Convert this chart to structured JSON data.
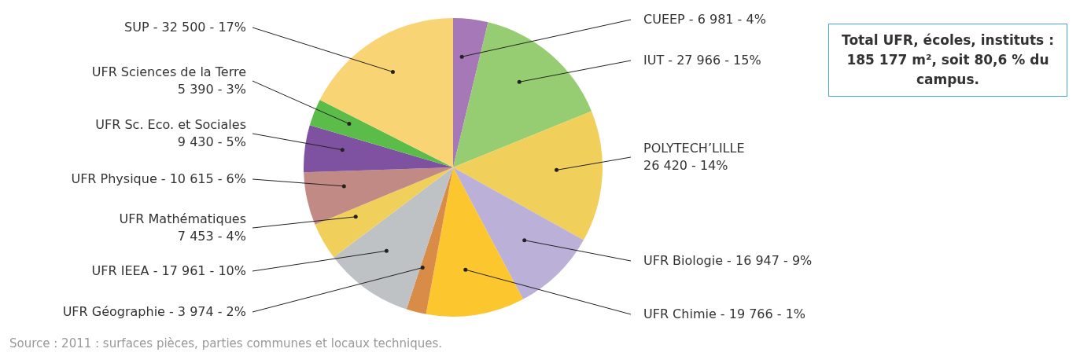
{
  "chart_data": {
    "type": "pie",
    "categories": [
      "CUEEP",
      "IUT",
      "POLYTECH’LILLE",
      "UFR Biologie",
      "UFR Chimie",
      "UFR Géographie",
      "UFR IEEA",
      "UFR Mathématiques",
      "UFR Physique",
      "UFR Sc. Eco. et Sociales",
      "UFR Sciences de la Terre",
      "SUP"
    ],
    "values": [
      6981,
      27966,
      26420,
      16947,
      19766,
      3974,
      17961,
      7453,
      10615,
      9430,
      5390,
      32500
    ],
    "value_labels": [
      "6 981 - 4%",
      "27 966 - 15%",
      "26 420 - 14%",
      "16 947 - 9%",
      "19 766 - 1%",
      "3 974 - 2%",
      "17 961 - 10%",
      "7 453 - 4%",
      "10 615 - 6%",
      "9 430 - 5%",
      "5 390 - 3%",
      "32 500 - 17%"
    ],
    "colors": [
      "#a678b8",
      "#97cd72",
      "#f0d05a",
      "#bab0d8",
      "#fcc62e",
      "#d98c48",
      "#bfc2c4",
      "#f0d05a",
      "#c28a84",
      "#7e52a0",
      "#5cbc4a",
      "#f9d475"
    ],
    "annotations": [
      "Total UFR, écoles, instituts : 185 177 m², soit 80,6 % du campus.",
      "Source : 2011 : surfaces pièces, parties communes et locaux techniques."
    ]
  }
}
